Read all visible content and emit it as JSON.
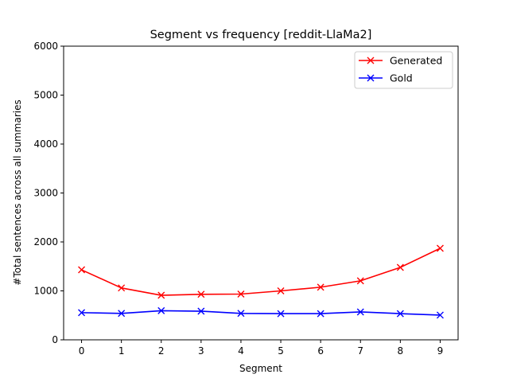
{
  "chart_data": {
    "type": "line",
    "title": "Segment vs frequency [reddit-LlaMa2]",
    "xlabel": "Segment",
    "ylabel": "#Total sentences across all summaries",
    "x": [
      0,
      1,
      2,
      3,
      4,
      5,
      6,
      7,
      8,
      9
    ],
    "xticks": [
      "0",
      "1",
      "2",
      "3",
      "4",
      "5",
      "6",
      "7",
      "8",
      "9"
    ],
    "xlim": [
      -0.45,
      9.45
    ],
    "ylim": [
      0,
      6000
    ],
    "yticks": [
      "0",
      "1000",
      "2000",
      "3000",
      "4000",
      "5000",
      "6000"
    ],
    "grid": false,
    "legend_position": "top-right",
    "series": [
      {
        "name": "Generated",
        "color": "#ff0000",
        "marker": "x",
        "values": [
          1430,
          1060,
          910,
          930,
          935,
          1000,
          1075,
          1205,
          1480,
          1870
        ]
      },
      {
        "name": "Gold",
        "color": "#0000ff",
        "marker": "x",
        "values": [
          555,
          540,
          595,
          585,
          540,
          535,
          535,
          570,
          535,
          505
        ]
      }
    ]
  }
}
